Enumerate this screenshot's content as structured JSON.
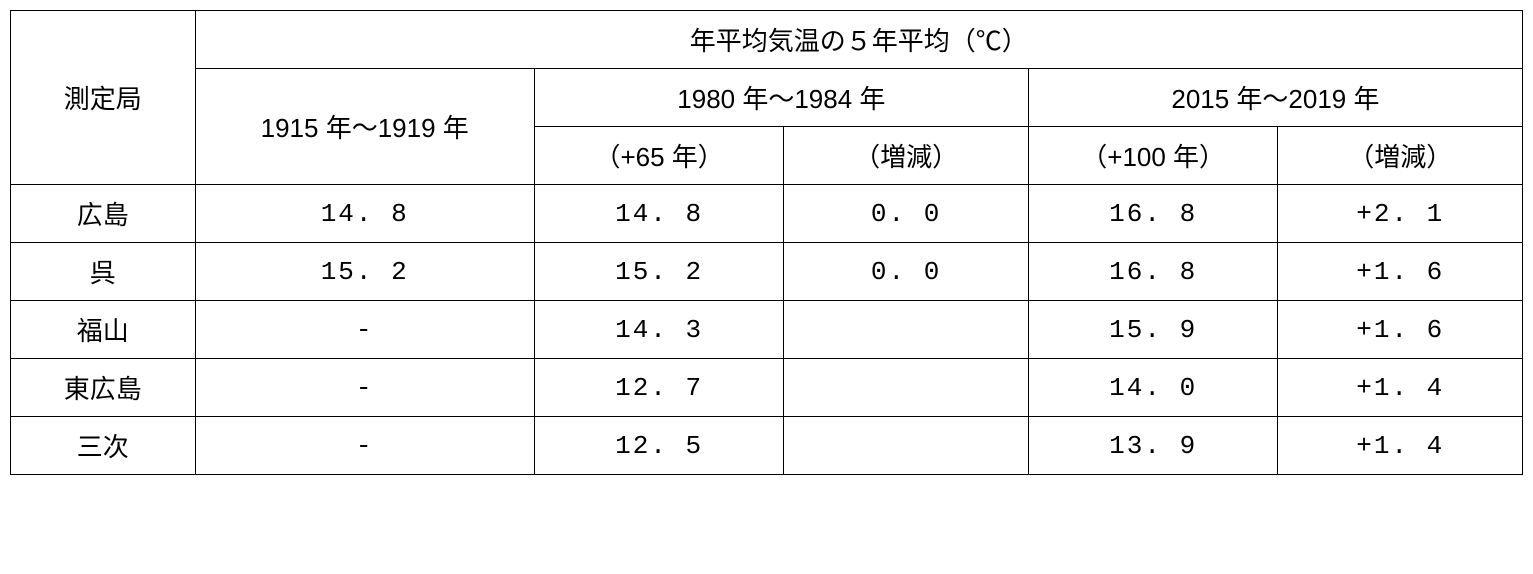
{
  "table": {
    "header": {
      "station_label": "測定局",
      "title": "年平均気温の５年平均（℃）",
      "period1": "1915 年～1919 年",
      "period2": "1980 年～1984 年",
      "period3": "2015 年～2019 年",
      "offset2": "（+65 年）",
      "change2": "（増減）",
      "offset3": "（+100 年）",
      "change3": "（増減）"
    },
    "rows": [
      {
        "station": "広島",
        "period1": "14. 8",
        "period2_val": "14. 8",
        "period2_change": "0. 0",
        "period3_val": "16. 8",
        "period3_change": "+2. 1"
      },
      {
        "station": "呉",
        "period1": "15. 2",
        "period2_val": "15. 2",
        "period2_change": "0. 0",
        "period3_val": "16. 8",
        "period3_change": "+1. 6"
      },
      {
        "station": "福山",
        "period1": "-",
        "period2_val": "14. 3",
        "period2_change": "",
        "period3_val": "15. 9",
        "period3_change": "+1. 6"
      },
      {
        "station": "東広島",
        "period1": "-",
        "period2_val": "12. 7",
        "period2_change": "",
        "period3_val": "14. 0",
        "period3_change": "+1. 4"
      },
      {
        "station": "三次",
        "period1": "-",
        "period2_val": "12. 5",
        "period2_change": "",
        "period3_val": "13. 9",
        "period3_change": "+1. 4"
      }
    ],
    "colors": {
      "background": "#ffffff",
      "border": "#000000",
      "text": "#000000"
    },
    "font_size": 26,
    "column_widths": {
      "station": 185,
      "period1": 340,
      "value": 250,
      "change": 245
    }
  }
}
